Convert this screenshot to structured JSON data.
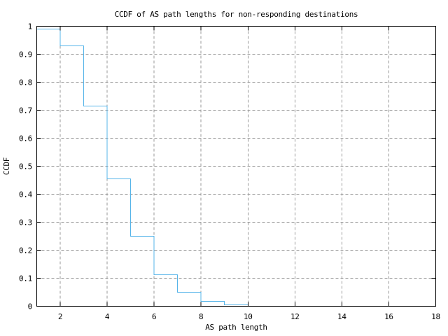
{
  "chart_data": {
    "type": "line",
    "subtype": "step-post",
    "title": "CCDF of AS path lengths for non-responding destinations",
    "xlabel": "AS path length",
    "ylabel": "CCDF",
    "xlim": [
      1,
      18
    ],
    "ylim": [
      0,
      1
    ],
    "xticks": [
      2,
      4,
      6,
      8,
      10,
      12,
      14,
      16,
      18
    ],
    "xtick_labels": [
      "2",
      "4",
      "6",
      "8",
      "10",
      "12",
      "14",
      "16",
      "18"
    ],
    "yticks": [
      0,
      0.1,
      0.2,
      0.3,
      0.4,
      0.5,
      0.6,
      0.7,
      0.8,
      0.9,
      1
    ],
    "ytick_labels": [
      "0",
      "0.1",
      "0.2",
      "0.3",
      "0.4",
      "0.5",
      "0.6",
      "0.7",
      "0.8",
      "0.9",
      "1"
    ],
    "grid": true,
    "grid_style": "dashed",
    "legend_position": "none",
    "colors": {
      "line": "#56B4E9",
      "grid": "#999999",
      "axis": "#000000",
      "background": "#FFFFFF"
    },
    "series": [
      {
        "name": "ccdf",
        "x": [
          1,
          2,
          3,
          4,
          5,
          6,
          7,
          8,
          9,
          10
        ],
        "y": [
          0.99,
          0.93,
          0.715,
          0.455,
          0.25,
          0.113,
          0.05,
          0.017,
          0.005,
          0
        ]
      }
    ]
  }
}
